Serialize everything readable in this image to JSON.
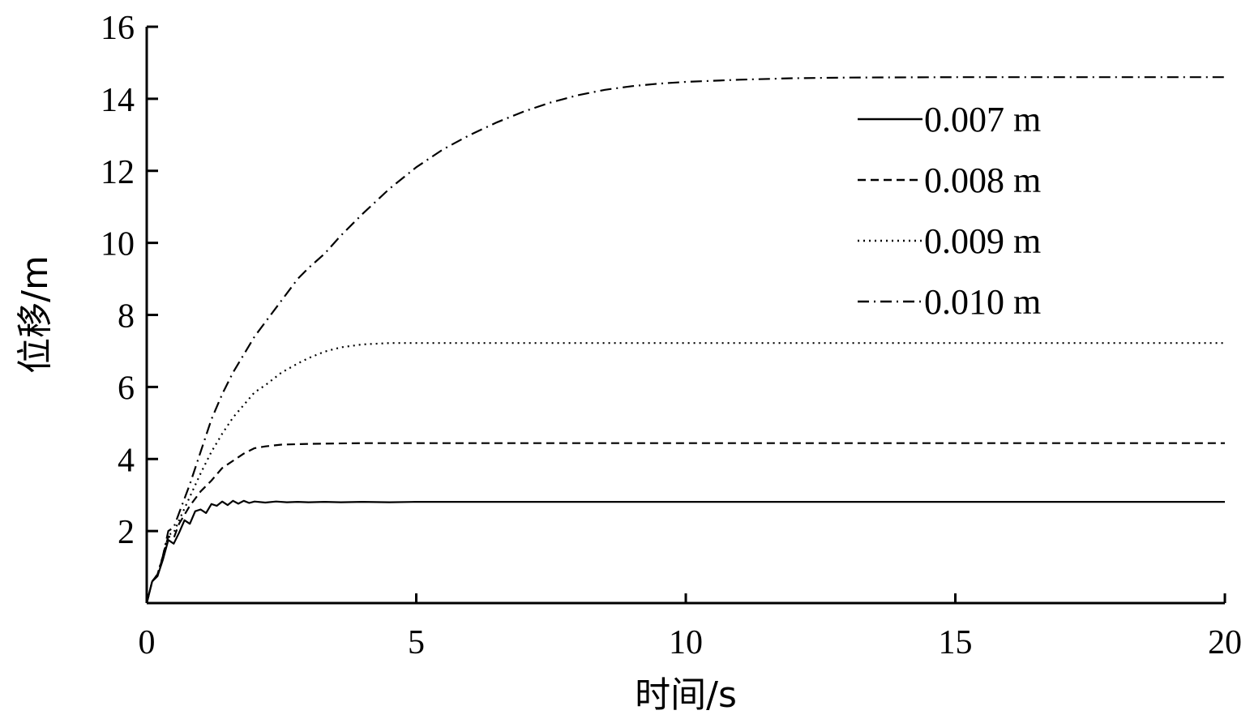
{
  "chart_data": {
    "type": "line",
    "title": "",
    "xlabel": "时间/s",
    "ylabel": "位移/m",
    "xlim": [
      0,
      20
    ],
    "ylim": [
      0,
      16
    ],
    "xticks": [
      0,
      5,
      10,
      15,
      20
    ],
    "yticks": [
      2,
      4,
      6,
      8,
      10,
      12,
      14,
      16
    ],
    "grid": false,
    "legend_position": "top-right",
    "series": [
      {
        "name": "0.007 m",
        "style": "solid",
        "color": "#000000",
        "x": [
          0,
          0.1,
          0.2,
          0.3,
          0.4,
          0.5,
          0.6,
          0.7,
          0.8,
          0.9,
          1.0,
          1.1,
          1.2,
          1.3,
          1.4,
          1.5,
          1.6,
          1.7,
          1.8,
          1.9,
          2.0,
          2.2,
          2.4,
          2.6,
          2.8,
          3.0,
          3.3,
          3.6,
          4.0,
          4.5,
          5,
          6,
          8,
          10,
          15,
          20
        ],
        "y": [
          0,
          0.6,
          0.75,
          1.2,
          1.75,
          1.65,
          1.95,
          2.3,
          2.2,
          2.55,
          2.6,
          2.5,
          2.75,
          2.7,
          2.82,
          2.72,
          2.84,
          2.76,
          2.84,
          2.78,
          2.82,
          2.79,
          2.82,
          2.8,
          2.81,
          2.8,
          2.81,
          2.8,
          2.81,
          2.8,
          2.81,
          2.81,
          2.81,
          2.81,
          2.81,
          2.81
        ]
      },
      {
        "name": "0.008 m",
        "style": "dashed",
        "color": "#000000",
        "x": [
          0,
          0.1,
          0.2,
          0.3,
          0.4,
          0.5,
          0.6,
          0.8,
          1.0,
          1.2,
          1.4,
          1.6,
          1.8,
          2.0,
          2.2,
          2.5,
          3.0,
          3.5,
          4,
          5,
          6,
          8,
          10,
          15,
          20
        ],
        "y": [
          0,
          0.6,
          0.75,
          1.3,
          1.85,
          1.8,
          2.2,
          2.7,
          3.1,
          3.4,
          3.75,
          3.95,
          4.15,
          4.3,
          4.35,
          4.4,
          4.42,
          4.43,
          4.44,
          4.44,
          4.44,
          4.44,
          4.44,
          4.44,
          4.44
        ]
      },
      {
        "name": "0.009 m",
        "style": "dotted",
        "color": "#000000",
        "x": [
          0,
          0.1,
          0.2,
          0.3,
          0.4,
          0.5,
          0.6,
          0.8,
          1.0,
          1.2,
          1.4,
          1.6,
          1.8,
          2.0,
          2.2,
          2.5,
          2.8,
          3.0,
          3.3,
          3.6,
          4.0,
          4.5,
          5,
          6,
          8,
          10,
          15,
          20
        ],
        "y": [
          0,
          0.6,
          0.8,
          1.3,
          1.9,
          1.95,
          2.3,
          2.95,
          3.6,
          4.2,
          4.7,
          5.15,
          5.5,
          5.85,
          6.05,
          6.4,
          6.65,
          6.8,
          6.98,
          7.1,
          7.18,
          7.22,
          7.22,
          7.22,
          7.22,
          7.22,
          7.22,
          7.22
        ]
      },
      {
        "name": "0.010 m",
        "style": "dashdot",
        "color": "#000000",
        "x": [
          0,
          0.1,
          0.2,
          0.3,
          0.4,
          0.5,
          0.6,
          0.8,
          1.0,
          1.2,
          1.4,
          1.6,
          1.8,
          2.0,
          2.2,
          2.5,
          2.8,
          3.0,
          3.3,
          3.6,
          4.0,
          4.5,
          5.0,
          5.5,
          6.0,
          6.5,
          7.0,
          7.5,
          8.0,
          8.5,
          9.0,
          9.5,
          10.0,
          11,
          12,
          13,
          15,
          20
        ],
        "y": [
          0,
          0.6,
          0.8,
          1.3,
          2.0,
          2.1,
          2.5,
          3.3,
          4.2,
          5.1,
          5.8,
          6.4,
          6.9,
          7.4,
          7.8,
          8.4,
          9.0,
          9.3,
          9.7,
          10.2,
          10.8,
          11.5,
          12.1,
          12.6,
          13.0,
          13.35,
          13.65,
          13.9,
          14.1,
          14.25,
          14.35,
          14.42,
          14.47,
          14.53,
          14.57,
          14.59,
          14.6,
          14.6
        ]
      }
    ]
  }
}
